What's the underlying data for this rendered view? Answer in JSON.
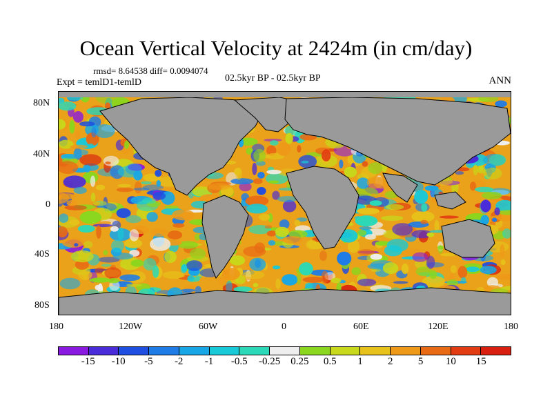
{
  "title": "Ocean Vertical Velocity at 2424m (in cm/day)",
  "stats": "rmsd= 8.64538 diff= 0.0094074",
  "experiment": "Expt = temlD1-temlD",
  "period": "02.5kyr BP - 02.5kyr BP",
  "season": "ANN",
  "y_labels": [
    "80N",
    "40N",
    "0",
    "40S",
    "80S"
  ],
  "x_labels": [
    "180",
    "120W",
    "60W",
    "0",
    "60E",
    "120E",
    "180"
  ],
  "colorbar": {
    "labels": [
      "-15",
      "-10",
      "-5",
      "-2",
      "-1",
      "-0.5",
      "-0.25",
      "0.25",
      "0.5",
      "1",
      "2",
      "5",
      "10",
      "15"
    ],
    "colors": [
      "#8a1ae0",
      "#4a2cd8",
      "#1f4fe0",
      "#1f7be6",
      "#19a6e6",
      "#18c9d8",
      "#2bd9b8",
      "#eeeeee",
      "#8bd61e",
      "#c8d81a",
      "#e6c21a",
      "#ee9a18",
      "#e86a14",
      "#e23c12",
      "#d81f10"
    ]
  },
  "land_color": "#9a9a9a"
}
